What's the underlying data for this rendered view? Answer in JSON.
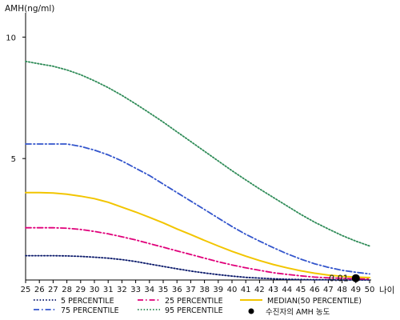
{
  "chart_data": {
    "type": "line",
    "title": "",
    "ylabel": "AMH(ng/ml)",
    "xlabel": "나이",
    "xlim": [
      25,
      50
    ],
    "ylim": [
      0,
      11
    ],
    "x_ticks": [
      25,
      26,
      27,
      28,
      29,
      30,
      31,
      32,
      33,
      34,
      35,
      36,
      37,
      38,
      39,
      40,
      41,
      42,
      43,
      44,
      45,
      46,
      47,
      48,
      49,
      50
    ],
    "y_ticks": [
      5,
      10
    ],
    "grid": false,
    "legend_position": "bottom",
    "series": [
      {
        "name": "5 PERCENTILE",
        "color": "#0b1a6b",
        "style": "dotted",
        "x": [
          25,
          26,
          27,
          28,
          29,
          30,
          31,
          32,
          33,
          34,
          35,
          36,
          37,
          38,
          39,
          40,
          41,
          42,
          43,
          44,
          45,
          46,
          47,
          48,
          49,
          50
        ],
        "values": [
          1.0,
          1.0,
          1.0,
          0.99,
          0.97,
          0.94,
          0.9,
          0.84,
          0.76,
          0.66,
          0.56,
          0.46,
          0.37,
          0.29,
          0.22,
          0.16,
          0.11,
          0.08,
          0.05,
          0.03,
          0.02,
          0.01,
          0.01,
          0.0,
          0.0,
          0.0
        ]
      },
      {
        "name": "25 PERCENTILE",
        "color": "#e0007a",
        "style": "dashdot",
        "x": [
          25,
          26,
          27,
          28,
          29,
          30,
          31,
          32,
          33,
          34,
          35,
          36,
          37,
          38,
          39,
          40,
          41,
          42,
          43,
          44,
          45,
          46,
          47,
          48,
          49,
          50
        ],
        "values": [
          2.15,
          2.15,
          2.15,
          2.13,
          2.08,
          2.0,
          1.9,
          1.78,
          1.65,
          1.5,
          1.35,
          1.2,
          1.05,
          0.9,
          0.75,
          0.62,
          0.5,
          0.4,
          0.3,
          0.23,
          0.17,
          0.12,
          0.09,
          0.07,
          0.05,
          0.04
        ]
      },
      {
        "name": "MEDIAN(50 PERCENTILE)",
        "color": "#f2c500",
        "style": "solid",
        "x": [
          25,
          26,
          27,
          28,
          29,
          30,
          31,
          32,
          33,
          34,
          35,
          36,
          37,
          38,
          39,
          40,
          41,
          42,
          43,
          44,
          45,
          46,
          47,
          48,
          49,
          50
        ],
        "values": [
          3.6,
          3.6,
          3.58,
          3.53,
          3.45,
          3.35,
          3.2,
          3.0,
          2.8,
          2.58,
          2.35,
          2.1,
          1.87,
          1.63,
          1.4,
          1.18,
          0.98,
          0.8,
          0.64,
          0.5,
          0.38,
          0.28,
          0.2,
          0.15,
          0.12,
          0.1
        ]
      },
      {
        "name": "75 PERCENTILE",
        "color": "#3355cc",
        "style": "dashdot",
        "x": [
          25,
          26,
          27,
          28,
          29,
          30,
          31,
          32,
          33,
          34,
          35,
          36,
          37,
          38,
          39,
          40,
          41,
          42,
          43,
          44,
          45,
          46,
          47,
          48,
          49,
          50
        ],
        "values": [
          5.6,
          5.6,
          5.6,
          5.6,
          5.5,
          5.35,
          5.15,
          4.9,
          4.6,
          4.3,
          3.95,
          3.6,
          3.25,
          2.9,
          2.55,
          2.2,
          1.88,
          1.6,
          1.33,
          1.08,
          0.86,
          0.67,
          0.52,
          0.4,
          0.32,
          0.25
        ]
      },
      {
        "name": "95 PERCENTILE",
        "color": "#2e8b57",
        "style": "dotted",
        "x": [
          25,
          26,
          27,
          28,
          29,
          30,
          31,
          32,
          33,
          34,
          35,
          36,
          37,
          38,
          39,
          40,
          41,
          42,
          43,
          44,
          45,
          46,
          47,
          48,
          49,
          50
        ],
        "values": [
          9.0,
          8.9,
          8.8,
          8.65,
          8.45,
          8.2,
          7.92,
          7.6,
          7.25,
          6.88,
          6.5,
          6.1,
          5.7,
          5.3,
          4.9,
          4.5,
          4.12,
          3.75,
          3.4,
          3.05,
          2.7,
          2.38,
          2.1,
          1.83,
          1.6,
          1.4
        ]
      }
    ],
    "subject_point": {
      "name": "수진자의 AMH 농도",
      "x": 49,
      "y": 0.01,
      "label": "0.01",
      "color": "#000000"
    }
  }
}
